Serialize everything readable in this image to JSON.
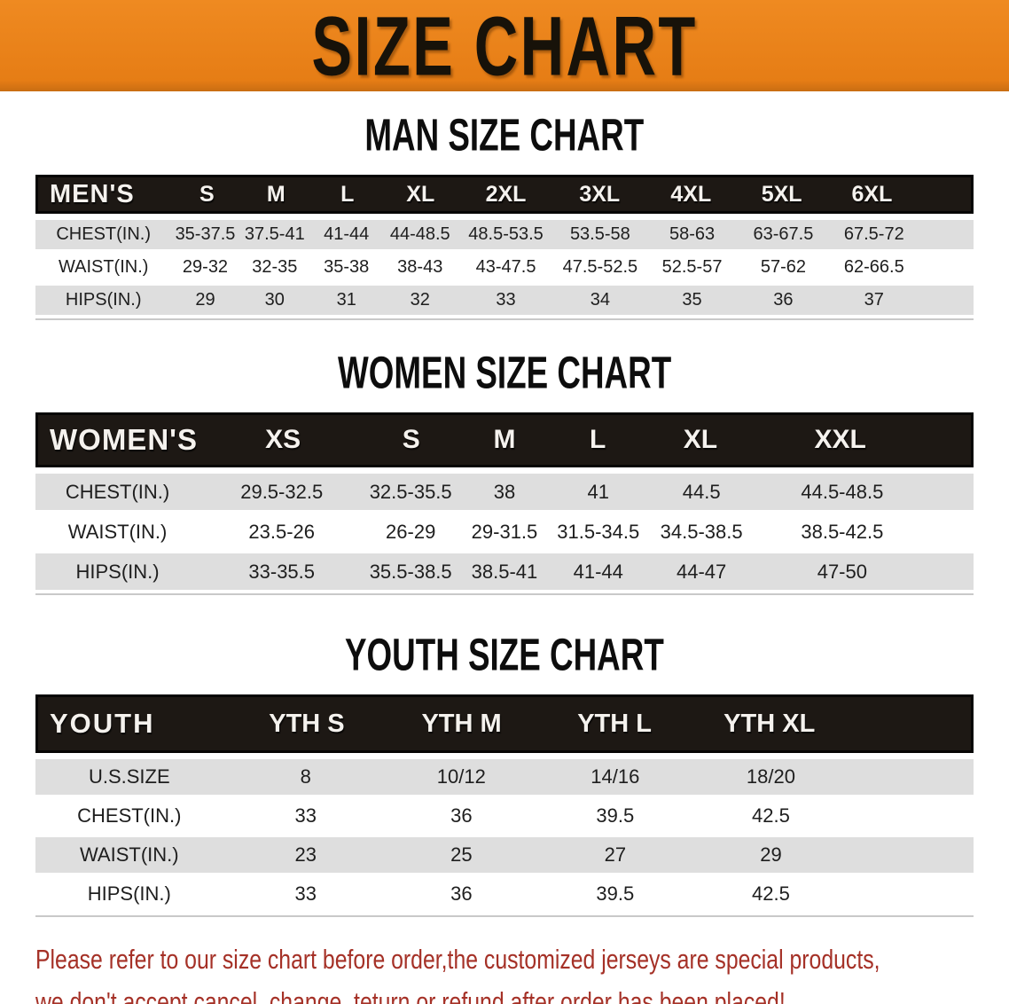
{
  "banner": {
    "title": "SIZE CHART"
  },
  "colors": {
    "banner_orange": "#E8811C",
    "table_header_bg": "#1D1814",
    "row_gray": "#DEDEDE",
    "note_red": "#A53127"
  },
  "sections": {
    "men": {
      "title": "MAN SIZE CHART",
      "table": {
        "header": [
          "MEN'S",
          "S",
          "M",
          "L",
          "XL",
          "2XL",
          "3XL",
          "4XL",
          "5XL",
          "6XL"
        ],
        "rows": [
          [
            "CHEST(IN.)",
            "35-37.5",
            "37.5-41",
            "41-44",
            "44-48.5",
            "48.5-53.5",
            "53.5-58",
            "58-63",
            "63-67.5",
            "67.5-72"
          ],
          [
            "WAIST(IN.)",
            "29-32",
            "32-35",
            "35-38",
            "38-43",
            "43-47.5",
            "47.5-52.5",
            "52.5-57",
            "57-62",
            "62-66.5"
          ],
          [
            "HIPS(IN.)",
            "29",
            "30",
            "31",
            "32",
            "33",
            "34",
            "35",
            "36",
            "37"
          ]
        ]
      }
    },
    "women": {
      "title": "WOMEN SIZE CHART",
      "table": {
        "header": [
          "WOMEN'S",
          "XS",
          "S",
          "M",
          "L",
          "XL",
          "XXL"
        ],
        "rows": [
          [
            "CHEST(IN.)",
            "29.5-32.5",
            "32.5-35.5",
            "38",
            "41",
            "44.5",
            "44.5-48.5"
          ],
          [
            "WAIST(IN.)",
            "23.5-26",
            "26-29",
            "29-31.5",
            "31.5-34.5",
            "34.5-38.5",
            "38.5-42.5"
          ],
          [
            "HIPS(IN.)",
            "33-35.5",
            "35.5-38.5",
            "38.5-41",
            "41-44",
            "44-47",
            "47-50"
          ]
        ]
      }
    },
    "youth": {
      "title": "YOUTH SIZE CHART",
      "table": {
        "header": [
          "YOUTH",
          "YTH S",
          "YTH M",
          "YTH L",
          "YTH XL"
        ],
        "rows": [
          [
            "U.S.SIZE",
            "8",
            "10/12",
            "14/16",
            "18/20"
          ],
          [
            "CHEST(IN.)",
            "33",
            "36",
            "39.5",
            "42.5"
          ],
          [
            "WAIST(IN.)",
            "23",
            "25",
            "27",
            "29"
          ],
          [
            "HIPS(IN.)",
            "33",
            "36",
            "39.5",
            "42.5"
          ]
        ]
      }
    }
  },
  "note": {
    "line1": "Please refer to our size chart before order,the customized jerseys are special products,",
    "line2": "we don't accept cancel, change, teturn or refund after order has been placed!"
  }
}
